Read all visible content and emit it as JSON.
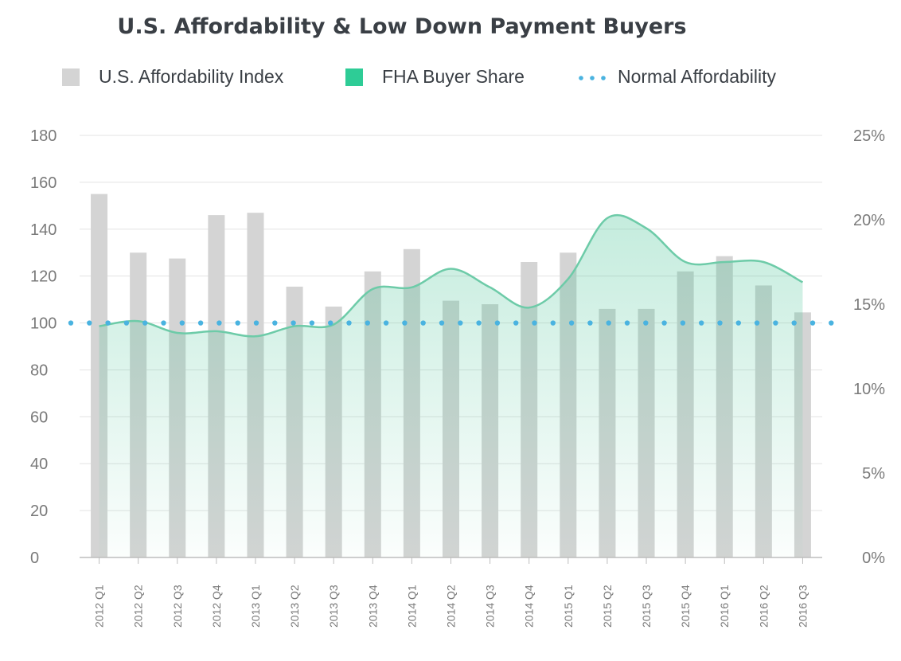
{
  "chart_data": {
    "type": "bar",
    "title": "U.S. Affordability & Low Down Payment Buyers",
    "categories": [
      "2012 Q1",
      "2012 Q2",
      "2012 Q3",
      "2012 Q4",
      "2013 Q1",
      "2013 Q2",
      "2013 Q3",
      "2013 Q4",
      "2014 Q1",
      "2014 Q2",
      "2014 Q3",
      "2014 Q4",
      "2015 Q1",
      "2015 Q2",
      "2015 Q3",
      "2015 Q4",
      "2016 Q1",
      "2016 Q2",
      "2016 Q3"
    ],
    "series": [
      {
        "name": "U.S. Affordability Index",
        "type": "bar",
        "axis": "left",
        "color": "#d4d4d4",
        "values": [
          155,
          130,
          127.5,
          146,
          147,
          115.5,
          107,
          122,
          131.5,
          109.5,
          108,
          126,
          130,
          106,
          106,
          122,
          128.5,
          116,
          104.5
        ]
      },
      {
        "name": "FHA Buyer Share",
        "type": "area",
        "axis": "right",
        "color": "#6dcba8",
        "legend_color": "#2ecc96",
        "values": [
          13.7,
          14.0,
          13.3,
          13.4,
          13.1,
          13.7,
          13.8,
          15.9,
          16.0,
          17.1,
          16.0,
          14.8,
          16.5,
          20.1,
          19.5,
          17.5,
          17.5,
          17.5,
          16.3
        ]
      },
      {
        "name": "Normal Affordability",
        "type": "reference-line",
        "axis": "left",
        "color": "#4ab3e0",
        "value": 100
      }
    ],
    "y_left": {
      "ticks": [
        "0",
        "20",
        "40",
        "60",
        "80",
        "100",
        "120",
        "140",
        "160",
        "180"
      ],
      "ylim": [
        0,
        180
      ]
    },
    "y_right": {
      "ticks": [
        "0%",
        "5%",
        "10%",
        "15%",
        "20%",
        "25%"
      ],
      "ylim": [
        0,
        25
      ]
    },
    "grid": true,
    "legend_position": "top"
  }
}
